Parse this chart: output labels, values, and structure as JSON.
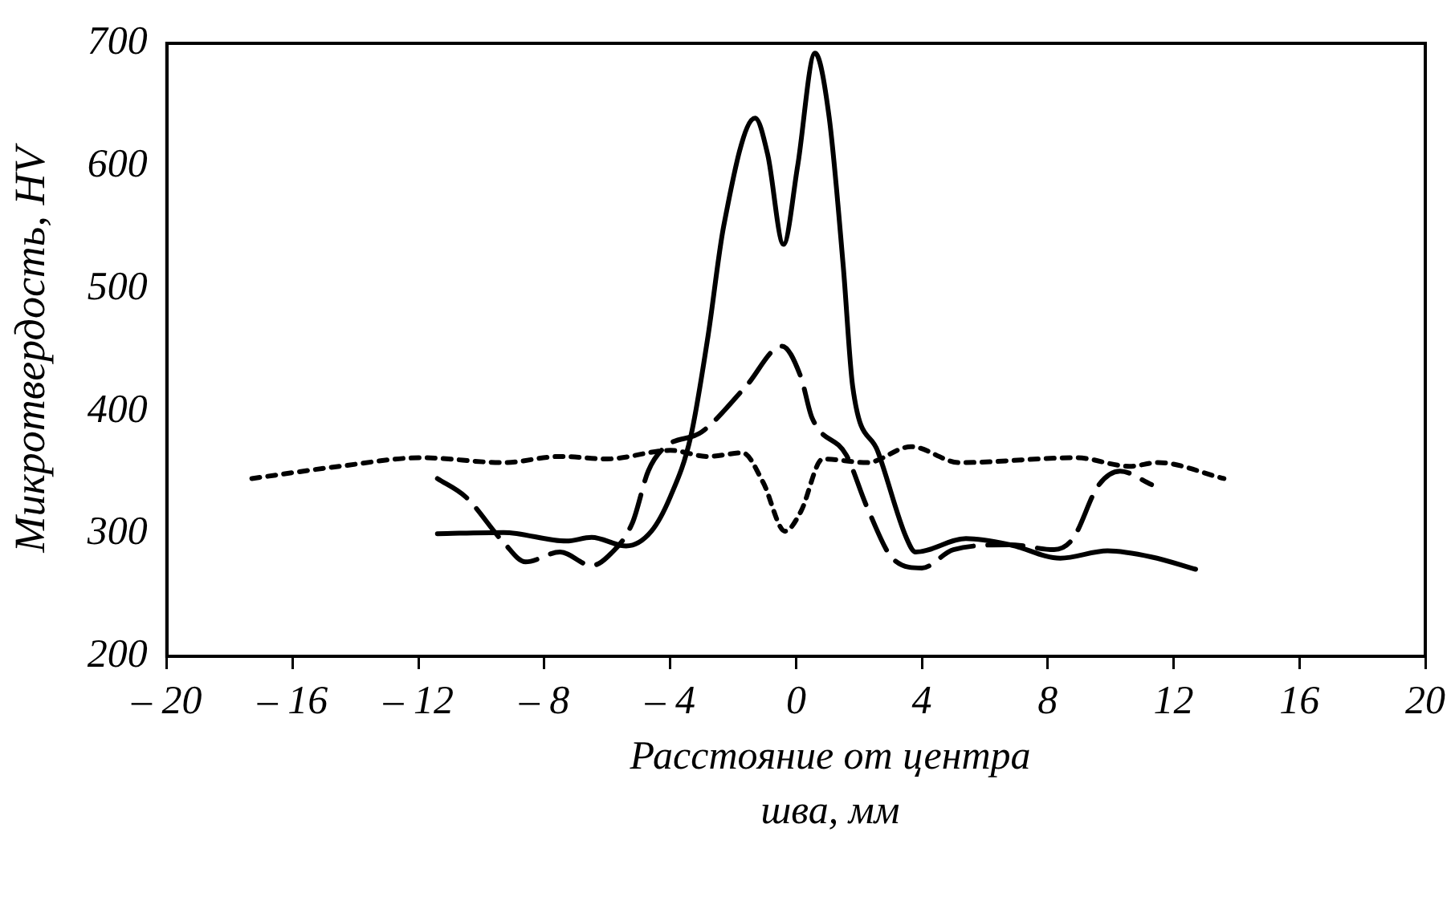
{
  "chart_data": {
    "type": "line",
    "xlabel": "Расстояние от центра шва, мм",
    "ylabel": "Микротвердость, HV",
    "xlim": [
      -20,
      20
    ],
    "xticks": [
      {
        "value": -20,
        "label": "– 20"
      },
      {
        "value": -16,
        "label": "– 16"
      },
      {
        "value": -12,
        "label": "– 12"
      },
      {
        "value": -8,
        "label": "– 8"
      },
      {
        "value": -4,
        "label": "– 4"
      },
      0,
      4,
      8,
      12,
      16,
      20
    ],
    "ylim": [
      200,
      700
    ],
    "yticks": [
      200,
      300,
      400,
      500,
      600,
      700
    ],
    "grid": false,
    "legend": false,
    "marker": "none",
    "series": [
      {
        "color": "#000000",
        "line_style": "solid",
        "x": [
          -11.4,
          -9.3,
          -7.3,
          -6.5,
          -5.4,
          -4.6,
          -4.0,
          -3.35,
          -2.8,
          -2.3,
          -1.3,
          -0.9,
          -0.4,
          0.05,
          0.6,
          1.05,
          1.5,
          1.8,
          2.6,
          3.5,
          3.8,
          5.4,
          6.8,
          8.4,
          9.9,
          11.3,
          12.7
        ],
        "values": [
          300,
          301,
          294,
          297,
          290,
          302,
          330,
          379,
          461,
          551,
          639,
          609,
          536,
          600,
          692,
          640,
          518,
          420,
          367,
          297,
          285,
          296,
          291,
          280,
          286,
          281,
          271
        ]
      },
      {
        "color": "#000000",
        "line_style": "dashed",
        "x": [
          -11.4,
          -10.5,
          -9.3,
          -8.6,
          -7.5,
          -6.5,
          -6.0,
          -5.2,
          -4.7,
          -4.2,
          -3.0,
          -1.6,
          -0.45,
          0.15,
          0.5,
          1.6,
          2.25,
          3.1,
          4.0,
          5.0,
          6.8,
          8.2,
          8.8,
          9.6,
          10.3,
          11.3
        ],
        "values": [
          345,
          330,
          293,
          277,
          285,
          274,
          281,
          309,
          351,
          370,
          383,
          420,
          453,
          428,
          395,
          364,
          322,
          279,
          272,
          287,
          291,
          287,
          296,
          339,
          351,
          340
        ]
      },
      {
        "color": "#000000",
        "line_style": "dotted",
        "x": [
          -17.3,
          -14.5,
          -11.9,
          -9.3,
          -7.5,
          -6.0,
          -4.0,
          -2.8,
          -1.7,
          -1.05,
          -0.35,
          0.15,
          0.85,
          2.25,
          3.65,
          5.2,
          8.9,
          10.6,
          11.5,
          13.6
        ],
        "values": [
          345,
          355,
          362,
          358,
          363,
          361,
          368,
          363,
          366,
          342,
          302,
          318,
          361,
          358,
          371,
          358,
          362,
          355,
          358,
          345
        ]
      }
    ]
  }
}
